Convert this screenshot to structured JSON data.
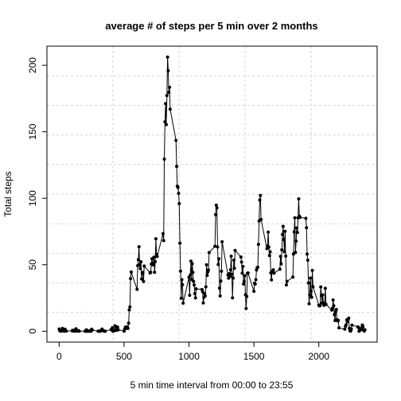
{
  "chart_data": {
    "type": "line",
    "title": "average # of steps per 5 min over 2 months",
    "xlabel": "5 min time interval from 00:00 to 23:55",
    "ylabel": "Total steps",
    "xlim": [
      -94,
      2449
    ],
    "ylim": [
      -8.2,
      214.4
    ],
    "xticks": [
      0,
      500,
      1000,
      1500,
      2000
    ],
    "yticks": [
      0,
      50,
      100,
      150,
      200
    ],
    "grid": true,
    "color": "#000000",
    "x": [
      0,
      5,
      10,
      15,
      20,
      25,
      30,
      35,
      40,
      45,
      50,
      55,
      100,
      105,
      110,
      115,
      120,
      125,
      130,
      135,
      140,
      145,
      150,
      155,
      200,
      205,
      210,
      215,
      220,
      225,
      230,
      235,
      240,
      245,
      250,
      255,
      300,
      305,
      310,
      315,
      320,
      325,
      330,
      335,
      340,
      345,
      350,
      355,
      400,
      405,
      410,
      415,
      420,
      425,
      430,
      435,
      440,
      445,
      450,
      455,
      500,
      505,
      510,
      515,
      520,
      525,
      530,
      535,
      540,
      545,
      550,
      555,
      600,
      605,
      610,
      615,
      620,
      625,
      630,
      635,
      640,
      645,
      650,
      655,
      700,
      705,
      710,
      715,
      720,
      725,
      730,
      735,
      740,
      745,
      750,
      755,
      800,
      805,
      810,
      815,
      820,
      825,
      830,
      835,
      840,
      845,
      850,
      855,
      900,
      905,
      910,
      915,
      920,
      925,
      930,
      935,
      940,
      945,
      950,
      955,
      1000,
      1005,
      1010,
      1015,
      1020,
      1025,
      1030,
      1035,
      1040,
      1045,
      1050,
      1055,
      1100,
      1105,
      1110,
      1115,
      1120,
      1125,
      1130,
      1135,
      1140,
      1145,
      1150,
      1155,
      1200,
      1205,
      1210,
      1215,
      1220,
      1225,
      1230,
      1235,
      1240,
      1245,
      1250,
      1255,
      1300,
      1305,
      1310,
      1315,
      1320,
      1325,
      1330,
      1335,
      1340,
      1345,
      1350,
      1355,
      1400,
      1405,
      1410,
      1415,
      1420,
      1425,
      1430,
      1435,
      1440,
      1445,
      1450,
      1455,
      1500,
      1505,
      1510,
      1515,
      1520,
      1525,
      1530,
      1535,
      1540,
      1545,
      1550,
      1555,
      1600,
      1605,
      1610,
      1615,
      1620,
      1625,
      1630,
      1635,
      1640,
      1645,
      1650,
      1655,
      1700,
      1705,
      1710,
      1715,
      1720,
      1725,
      1730,
      1735,
      1740,
      1745,
      1750,
      1755,
      1800,
      1805,
      1810,
      1815,
      1820,
      1825,
      1830,
      1835,
      1840,
      1845,
      1850,
      1855,
      1900,
      1905,
      1910,
      1915,
      1920,
      1925,
      1930,
      1935,
      1940,
      1945,
      1950,
      1955,
      2000,
      2005,
      2010,
      2015,
      2020,
      2025,
      2030,
      2035,
      2040,
      2045,
      2050,
      2055,
      2100,
      2105,
      2110,
      2115,
      2120,
      2125,
      2130,
      2135,
      2140,
      2145,
      2150,
      2155,
      2200,
      2205,
      2210,
      2215,
      2220,
      2225,
      2230,
      2235,
      2240,
      2245,
      2250,
      2255,
      2300,
      2305,
      2310,
      2315,
      2320,
      2325,
      2330,
      2335,
      2340,
      2345,
      2350,
      2355
    ],
    "values": [
      1.7,
      0.3,
      0.1,
      0.2,
      0.1,
      2.1,
      0.5,
      0.9,
      0,
      1.5,
      0.3,
      0.1,
      0.3,
      0.7,
      0.2,
      0.3,
      0,
      1.1,
      1.8,
      0.2,
      0.2,
      0.4,
      0.3,
      0,
      0,
      0,
      1.1,
      0,
      0,
      0.1,
      0,
      0.2,
      0,
      0,
      1.5,
      0.9,
      0,
      0,
      0,
      0,
      0.2,
      0.6,
      1.6,
      0.6,
      0.5,
      0.1,
      0,
      0,
      1.2,
      0.9,
      2.6,
      0,
      0.3,
      0.4,
      4.1,
      0.7,
      3.5,
      0.8,
      3.1,
      1.1,
      0,
      1.6,
      3,
      2.2,
      3.3,
      3,
      2.1,
      6.1,
      16,
      18.3,
      39.5,
      44.5,
      31.5,
      49.3,
      53.8,
      63.5,
      50,
      47.1,
      52.2,
      39.3,
      44,
      44.2,
      37.4,
      49,
      43.8,
      44.4,
      50.5,
      54.5,
      49.9,
      51,
      55.7,
      44.3,
      52.3,
      69.5,
      57.8,
      56.2,
      73.4,
      68.2,
      129.4,
      157.5,
      171.2,
      155.4,
      177.3,
      206.2,
      195.9,
      179.6,
      183.4,
      167,
      143.5,
      124,
      109.1,
      108.1,
      103.7,
      96,
      66.2,
      45.2,
      24.8,
      38.8,
      35,
      21.1,
      40.6,
      27,
      42.4,
      52.7,
      38.9,
      50.8,
      44.3,
      37.4,
      34.7,
      28.3,
      25.1,
      31.9,
      31.4,
      29.7,
      21.3,
      25.5,
      28.4,
      26.5,
      33.4,
      50,
      42,
      44.6,
      46,
      59.2,
      63.9,
      87.7,
      94.8,
      92.8,
      63.4,
      50.2,
      54.5,
      32.4,
      26.5,
      37.7,
      45.1,
      67.3,
      42.3,
      39.9,
      43.3,
      41,
      46.2,
      56.4,
      42.8,
      25.1,
      40,
      53.5,
      47.3,
      60.8,
      55.8,
      52,
      43.6,
      48.7,
      35.5,
      37.5,
      41.8,
      27.5,
      17.1,
      26.1,
      43.6,
      43.8,
      30,
      36.1,
      35.5,
      38.8,
      46,
      47.8,
      48.1,
      65.3,
      82.9,
      98.7,
      102.1,
      84,
      62.1,
      64.1,
      74.5,
      63.2,
      56.9,
      59.8,
      43.9,
      38.6,
      44.7,
      45.5,
      46.2,
      43.7,
      46.6,
      56.3,
      50.7,
      61.2,
      72.7,
      78.9,
      68.9,
      59.7,
      75.1,
      56.5,
      34.8,
      37.5,
      40.7,
      58,
      74.7,
      85.3,
      59.3,
      67.8,
      77.7,
      74.2,
      85.3,
      99.5,
      86.6,
      85.6,
      84.9,
      77.8,
      58,
      53.4,
      36.3,
      20.7,
      27.4,
      40,
      30.2,
      25.5,
      45.7,
      33.5,
      19.6,
      19,
      19.3,
      33.3,
      26.8,
      21.2,
      27.3,
      21.3,
      19.5,
      21.3,
      32.3,
      20.2,
      15.9,
      17.2,
      23.5,
      19.2,
      12.5,
      8,
      14.7,
      16.3,
      8.7,
      7.8,
      8.1,
      2.6,
      1.5,
      3.7,
      4.8,
      8.5,
      7.1,
      8.7,
      9.8,
      2.2,
      0.3,
      0.1,
      1.6,
      4.6,
      3.3,
      2.8,
      0,
      0.8,
      1,
      1.6,
      2.6,
      4.7,
      3.3,
      0.6,
      0.2,
      1.1
    ]
  }
}
